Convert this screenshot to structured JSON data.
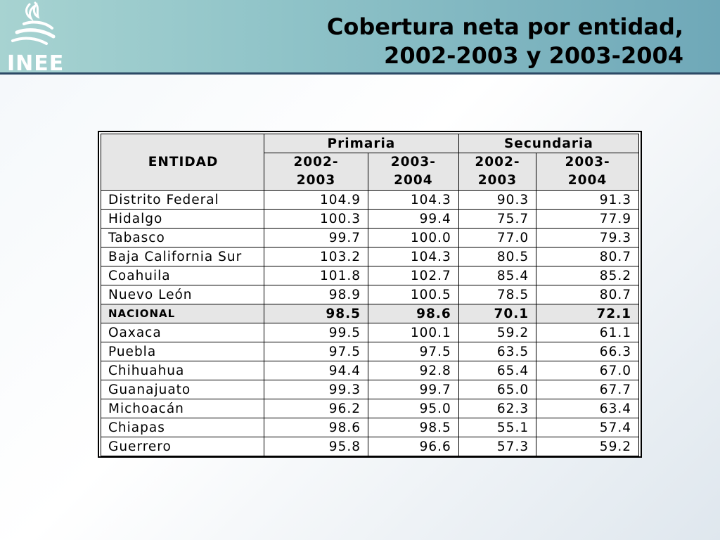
{
  "header": {
    "logo_text": "INEE",
    "title_line1": "Cobertura neta por entidad,",
    "title_line2": "2002-2003 y 2003-2004"
  },
  "table": {
    "entidad_header": "ENTIDAD",
    "groups": [
      {
        "label": "Primaria"
      },
      {
        "label": "Secundaria"
      }
    ],
    "year_headers": [
      {
        "line1": "2002-",
        "line2": "2003"
      },
      {
        "line1": "2003-",
        "line2": "2004"
      },
      {
        "line1": "2002-",
        "line2": "2003"
      },
      {
        "line1": "2003-",
        "line2": "2004"
      }
    ],
    "rows": [
      {
        "name": "Distrito Federal",
        "v1": "104.9",
        "v2": "104.3",
        "v3": "90.3",
        "v4": "91.3"
      },
      {
        "name": "Hidalgo",
        "v1": "100.3",
        "v2": "99.4",
        "v3": "75.7",
        "v4": "77.9"
      },
      {
        "name": "Tabasco",
        "v1": "99.7",
        "v2": "100.0",
        "v3": "77.0",
        "v4": "79.3"
      },
      {
        "name": "Baja California Sur",
        "v1": "103.2",
        "v2": "104.3",
        "v3": "80.5",
        "v4": "80.7"
      },
      {
        "name": "Coahuila",
        "v1": "101.8",
        "v2": "102.7",
        "v3": "85.4",
        "v4": "85.2"
      },
      {
        "name": "Nuevo León",
        "v1": "98.9",
        "v2": "100.5",
        "v3": "78.5",
        "v4": "80.7"
      },
      {
        "name": "NACIONAL",
        "v1": "98.5",
        "v2": "98.6",
        "v3": "70.1",
        "v4": "72.1"
      },
      {
        "name": "Oaxaca",
        "v1": "99.5",
        "v2": "100.1",
        "v3": "59.2",
        "v4": "61.1"
      },
      {
        "name": "Puebla",
        "v1": "97.5",
        "v2": "97.5",
        "v3": "63.5",
        "v4": "66.3"
      },
      {
        "name": "Chihuahua",
        "v1": "94.4",
        "v2": "92.8",
        "v3": "65.4",
        "v4": "67.0"
      },
      {
        "name": "Guanajuato",
        "v1": "99.3",
        "v2": "99.7",
        "v3": "65.0",
        "v4": "67.7"
      },
      {
        "name": "Michoacán",
        "v1": "96.2",
        "v2": "95.0",
        "v3": "62.3",
        "v4": "63.4"
      },
      {
        "name": "Chiapas",
        "v1": "98.6",
        "v2": "98.5",
        "v3": "55.1",
        "v4": "57.4"
      },
      {
        "name": "Guerrero",
        "v1": "95.8",
        "v2": "96.6",
        "v3": "57.3",
        "v4": "59.2"
      }
    ]
  }
}
